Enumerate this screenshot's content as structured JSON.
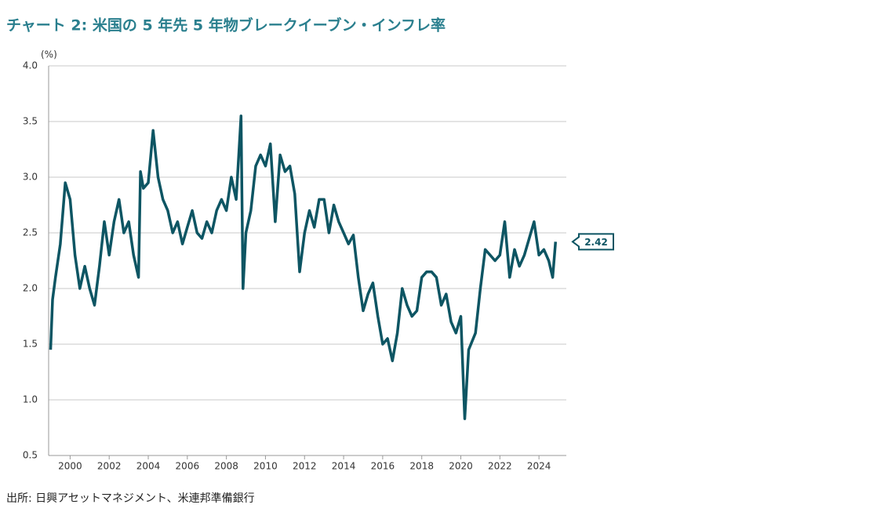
{
  "chart_data": {
    "type": "line",
    "title": "チャート 2: 米国の 5 年先 5 年物ブレークイーブン・インフレ率",
    "y_label": "(%)",
    "source": "出所: 日興アセットマネジメント、米連邦準備銀行",
    "x": [
      1999.0,
      1999.1,
      1999.25,
      1999.5,
      1999.75,
      2000.0,
      2000.25,
      2000.5,
      2000.75,
      2001.0,
      2001.25,
      2001.5,
      2001.75,
      2002.0,
      2002.25,
      2002.5,
      2002.75,
      2003.0,
      2003.25,
      2003.5,
      2003.6,
      2003.75,
      2004.0,
      2004.25,
      2004.5,
      2004.75,
      2005.0,
      2005.25,
      2005.5,
      2005.75,
      2006.0,
      2006.25,
      2006.5,
      2006.75,
      2007.0,
      2007.25,
      2007.5,
      2007.75,
      2008.0,
      2008.25,
      2008.5,
      2008.75,
      2008.85,
      2009.0,
      2009.25,
      2009.5,
      2009.75,
      2010.0,
      2010.25,
      2010.5,
      2010.75,
      2011.0,
      2011.25,
      2011.5,
      2011.75,
      2012.0,
      2012.25,
      2012.5,
      2012.75,
      2013.0,
      2013.25,
      2013.5,
      2013.75,
      2014.0,
      2014.25,
      2014.5,
      2014.75,
      2015.0,
      2015.25,
      2015.5,
      2015.75,
      2016.0,
      2016.25,
      2016.5,
      2016.75,
      2017.0,
      2017.25,
      2017.5,
      2017.75,
      2018.0,
      2018.25,
      2018.5,
      2018.75,
      2019.0,
      2019.25,
      2019.5,
      2019.75,
      2020.0,
      2020.2,
      2020.4,
      2020.75,
      2021.0,
      2021.25,
      2021.5,
      2021.75,
      2022.0,
      2022.25,
      2022.5,
      2022.75,
      2023.0,
      2023.25,
      2023.5,
      2023.75,
      2024.0,
      2024.25,
      2024.5,
      2024.7,
      2024.85
    ],
    "series": [
      {
        "name": "5年先5年物ブレークイーブン・インフレ率",
        "color": "#0d5563",
        "values": [
          1.45,
          1.9,
          2.1,
          2.4,
          2.95,
          2.8,
          2.3,
          2.0,
          2.2,
          2.0,
          1.85,
          2.2,
          2.6,
          2.3,
          2.6,
          2.8,
          2.5,
          2.6,
          2.3,
          2.1,
          3.05,
          2.9,
          2.95,
          3.42,
          3.0,
          2.8,
          2.7,
          2.5,
          2.6,
          2.4,
          2.55,
          2.7,
          2.5,
          2.45,
          2.6,
          2.5,
          2.7,
          2.8,
          2.7,
          3.0,
          2.8,
          3.55,
          2.0,
          2.5,
          2.7,
          3.1,
          3.2,
          3.1,
          3.3,
          2.6,
          3.2,
          3.05,
          3.1,
          2.85,
          2.15,
          2.5,
          2.7,
          2.55,
          2.8,
          2.8,
          2.5,
          2.75,
          2.6,
          2.5,
          2.4,
          2.48,
          2.1,
          1.8,
          1.95,
          2.05,
          1.75,
          1.5,
          1.55,
          1.35,
          1.6,
          2.0,
          1.85,
          1.75,
          1.8,
          2.1,
          2.15,
          2.15,
          2.1,
          1.85,
          1.95,
          1.7,
          1.6,
          1.75,
          0.83,
          1.45,
          1.6,
          2.0,
          2.35,
          2.3,
          2.25,
          2.3,
          2.6,
          2.1,
          2.35,
          2.2,
          2.3,
          2.45,
          2.6,
          2.3,
          2.35,
          2.25,
          2.1,
          2.42
        ]
      }
    ],
    "xlim": [
      1998.9,
      2025.4
    ],
    "xticks": [
      2000,
      2002,
      2004,
      2006,
      2008,
      2010,
      2012,
      2014,
      2016,
      2018,
      2020,
      2022,
      2024
    ],
    "ylim": [
      0.5,
      4
    ],
    "yticks": [
      0.5,
      {
        "value": 1,
        "label": "1.0"
      },
      1.5,
      {
        "value": 2,
        "label": "2.0"
      },
      2.5,
      {
        "value": 3,
        "label": "3.0"
      },
      3.5,
      {
        "value": 4,
        "label": "4.0"
      }
    ],
    "grid": true
  }
}
